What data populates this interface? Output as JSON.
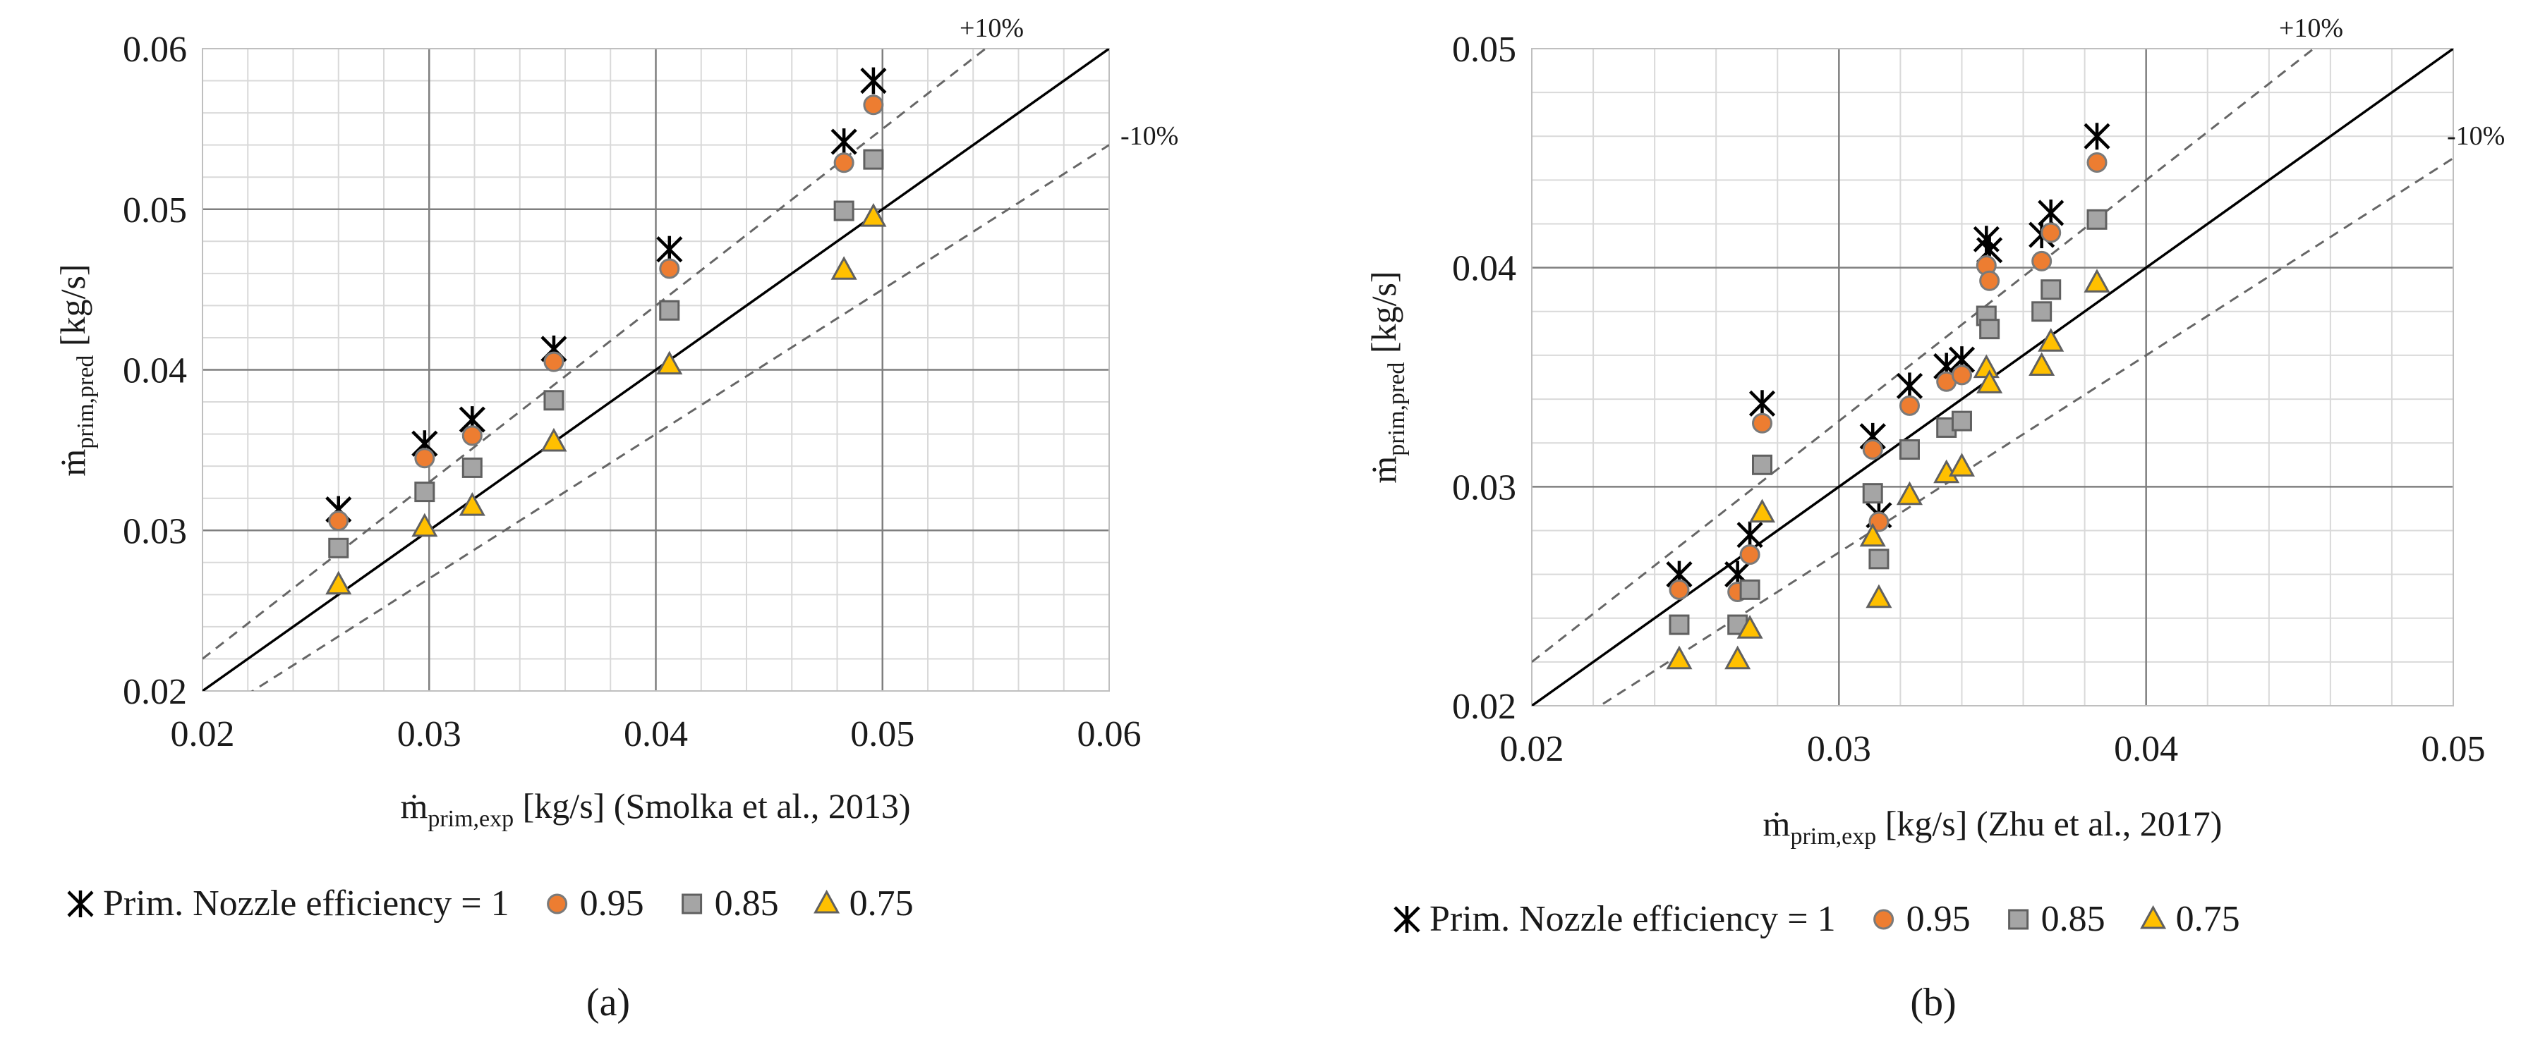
{
  "chart_data": [
    {
      "type": "scatter",
      "panel_label": "(a)",
      "xlabel": {
        "prefix": "ṁ",
        "sub": "prim,exp",
        "suffix": " [kg/s] (Smolka et al., 2013)"
      },
      "ylabel": {
        "prefix": "ṁ",
        "sub": "prim,pred",
        "suffix": " [kg/s]"
      },
      "xlim": [
        0.02,
        0.06
      ],
      "ylim": [
        0.02,
        0.06
      ],
      "major_step": 0.01,
      "minor_step": 0.002,
      "x_ticks": [
        "0.02",
        "0.03",
        "0.04",
        "0.05",
        "0.06"
      ],
      "y_ticks": [
        "0.02",
        "0.03",
        "0.04",
        "0.05",
        "0.06"
      ],
      "reference_lines": [
        {
          "label": "+10%",
          "factor": 1.1
        },
        {
          "label": "-10%",
          "factor": 0.9
        }
      ],
      "series": [
        {
          "name": "Prim. Nozzle efficiency = 1",
          "marker": "star",
          "color": "#000000",
          "points": [
            [
              0.026,
              0.0313
            ],
            [
              0.0298,
              0.0354
            ],
            [
              0.0319,
              0.0369
            ],
            [
              0.0355,
              0.0413
            ],
            [
              0.0406,
              0.0475
            ],
            [
              0.0483,
              0.0542
            ],
            [
              0.0496,
              0.058
            ]
          ]
        },
        {
          "name": "0.95",
          "marker": "circle",
          "color": "#ED7D31",
          "points": [
            [
              0.026,
              0.0306
            ],
            [
              0.0298,
              0.0345
            ],
            [
              0.0319,
              0.0359
            ],
            [
              0.0355,
              0.0405
            ],
            [
              0.0406,
              0.0463
            ],
            [
              0.0483,
              0.0529
            ],
            [
              0.0496,
              0.0565
            ]
          ]
        },
        {
          "name": "0.85",
          "marker": "square",
          "color": "#A5A5A5",
          "points": [
            [
              0.026,
              0.0289
            ],
            [
              0.0298,
              0.0324
            ],
            [
              0.0319,
              0.0339
            ],
            [
              0.0355,
              0.0381
            ],
            [
              0.0406,
              0.0437
            ],
            [
              0.0483,
              0.0499
            ],
            [
              0.0496,
              0.0531
            ]
          ]
        },
        {
          "name": "0.75",
          "marker": "triangle",
          "color": "#FFC000",
          "points": [
            [
              0.026,
              0.0266
            ],
            [
              0.0298,
              0.0302
            ],
            [
              0.0319,
              0.0315
            ],
            [
              0.0355,
              0.0355
            ],
            [
              0.0406,
              0.0403
            ],
            [
              0.0483,
              0.0462
            ],
            [
              0.0496,
              0.0495
            ]
          ]
        }
      ]
    },
    {
      "type": "scatter",
      "panel_label": "(b)",
      "xlabel": {
        "prefix": "ṁ",
        "sub": "prim,exp",
        "suffix": " [kg/s] (Zhu et al., 2017)"
      },
      "ylabel": {
        "prefix": "ṁ",
        "sub": "prim,pred",
        "suffix": " [kg/s]"
      },
      "xlim": [
        0.02,
        0.05
      ],
      "ylim": [
        0.02,
        0.05
      ],
      "major_step": 0.01,
      "minor_step": 0.002,
      "x_ticks": [
        "0.02",
        "0.03",
        "0.04",
        "0.05"
      ],
      "y_ticks": [
        "0.02",
        "0.03",
        "0.04",
        "0.05"
      ],
      "reference_lines": [
        {
          "label": "+10%",
          "factor": 1.1
        },
        {
          "label": "-10%",
          "factor": 0.9
        }
      ],
      "series": [
        {
          "name": "Prim. Nozzle efficiency = 1",
          "marker": "star",
          "color": "#000000",
          "points": [
            [
              0.0248,
              0.026
            ],
            [
              0.0267,
              0.026
            ],
            [
              0.0271,
              0.0278
            ],
            [
              0.0275,
              0.0338
            ],
            [
              0.0311,
              0.0323
            ],
            [
              0.0313,
              0.0287
            ],
            [
              0.0323,
              0.0346
            ],
            [
              0.0335,
              0.0355
            ],
            [
              0.034,
              0.0358
            ],
            [
              0.0348,
              0.0413
            ],
            [
              0.0349,
              0.0408
            ],
            [
              0.0366,
              0.0415
            ],
            [
              0.0369,
              0.0425
            ],
            [
              0.0384,
              0.046
            ]
          ]
        },
        {
          "name": "0.95",
          "marker": "circle",
          "color": "#ED7D31",
          "points": [
            [
              0.0248,
              0.0253
            ],
            [
              0.0267,
              0.0252
            ],
            [
              0.0271,
              0.0269
            ],
            [
              0.0275,
              0.0329
            ],
            [
              0.0311,
              0.0317
            ],
            [
              0.0313,
              0.0284
            ],
            [
              0.0323,
              0.0337
            ],
            [
              0.0335,
              0.0348
            ],
            [
              0.034,
              0.0351
            ],
            [
              0.0348,
              0.0401
            ],
            [
              0.0349,
              0.0394
            ],
            [
              0.0366,
              0.0403
            ],
            [
              0.0369,
              0.0416
            ],
            [
              0.0384,
              0.0448
            ]
          ]
        },
        {
          "name": "0.85",
          "marker": "square",
          "color": "#A5A5A5",
          "points": [
            [
              0.0248,
              0.0237
            ],
            [
              0.0267,
              0.0237
            ],
            [
              0.0271,
              0.0253
            ],
            [
              0.0275,
              0.031
            ],
            [
              0.0311,
              0.0297
            ],
            [
              0.0313,
              0.0267
            ],
            [
              0.0323,
              0.0317
            ],
            [
              0.0335,
              0.0327
            ],
            [
              0.034,
              0.033
            ],
            [
              0.0348,
              0.0378
            ],
            [
              0.0349,
              0.0372
            ],
            [
              0.0366,
              0.038
            ],
            [
              0.0369,
              0.039
            ],
            [
              0.0384,
              0.0422
            ]
          ]
        },
        {
          "name": "0.75",
          "marker": "triangle",
          "color": "#FFC000",
          "points": [
            [
              0.0248,
              0.0221
            ],
            [
              0.0267,
              0.0221
            ],
            [
              0.0271,
              0.0235
            ],
            [
              0.0275,
              0.0288
            ],
            [
              0.0311,
              0.0277
            ],
            [
              0.0313,
              0.0249
            ],
            [
              0.0323,
              0.0296
            ],
            [
              0.0335,
              0.0306
            ],
            [
              0.034,
              0.0309
            ],
            [
              0.0348,
              0.0354
            ],
            [
              0.0349,
              0.0347
            ],
            [
              0.0366,
              0.0355
            ],
            [
              0.0369,
              0.0366
            ],
            [
              0.0384,
              0.0393
            ]
          ]
        }
      ]
    }
  ]
}
